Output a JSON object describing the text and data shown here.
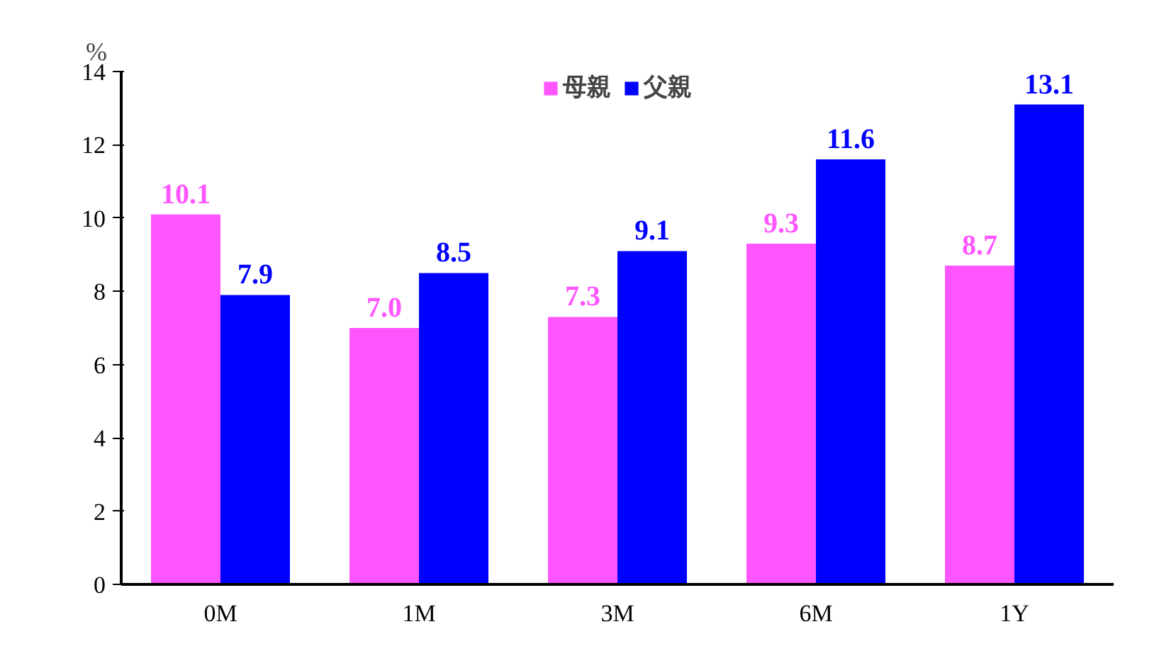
{
  "chart_data": {
    "type": "bar",
    "ylabel": "%",
    "categories": [
      "0M",
      "1M",
      "3M",
      "6M",
      "1Y"
    ],
    "series": [
      {
        "name": "母親",
        "color": "#ff55ff",
        "values": [
          10.1,
          7.0,
          7.3,
          9.3,
          8.7
        ],
        "value_labels": [
          "10.1",
          "7.0",
          "7.3",
          "9.3",
          "8.7"
        ]
      },
      {
        "name": "父親",
        "color": "#0000ff",
        "values": [
          7.9,
          8.5,
          9.1,
          11.6,
          13.1
        ]
      }
    ],
    "ylim": [
      0,
      14
    ],
    "yticks": [
      0,
      2,
      4,
      6,
      8,
      10,
      12,
      14
    ],
    "data_labels": true,
    "legend": "top",
    "grid": false
  }
}
